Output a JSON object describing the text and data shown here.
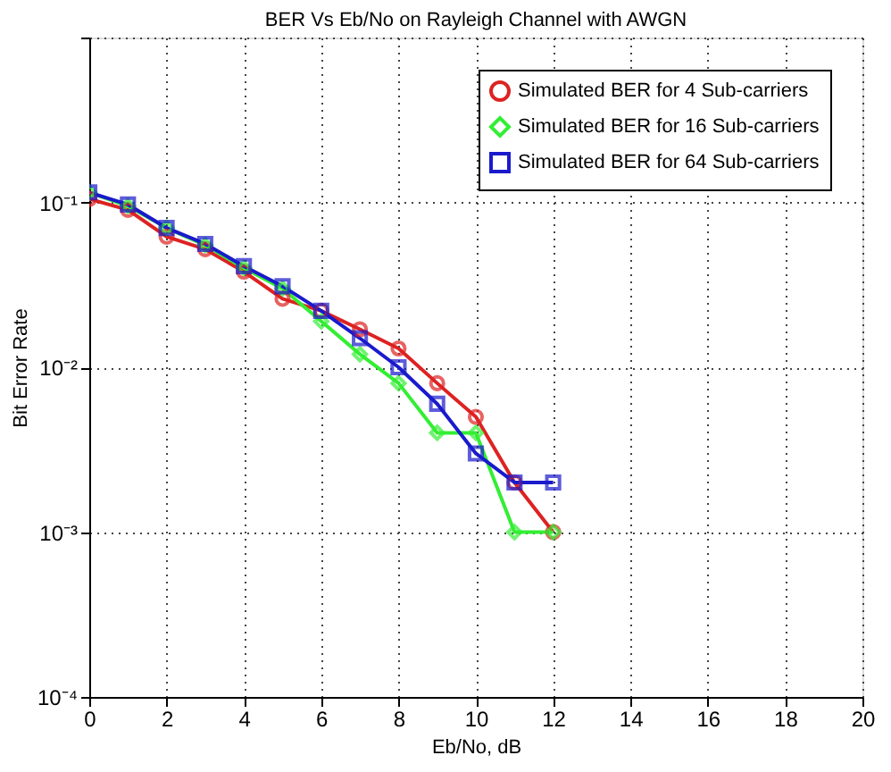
{
  "chart_data": {
    "type": "line",
    "title": "BER Vs Eb/No on Rayleigh Channel with AWGN",
    "xlabel": "Eb/No, dB",
    "ylabel": "Bit Error Rate",
    "x": [
      0,
      1,
      2,
      3,
      4,
      5,
      6,
      7,
      8,
      9,
      10,
      11,
      12
    ],
    "series": [
      {
        "name": "Simulated BER for 4 Sub-carriers",
        "color": "#dd2222",
        "marker": "circle",
        "values": [
          0.105,
          0.09,
          0.062,
          0.052,
          0.038,
          0.026,
          0.022,
          0.017,
          0.013,
          0.008,
          0.005,
          0.002,
          0.001
        ]
      },
      {
        "name": "Simulated BER for 16 Sub-carriers",
        "color": "#33ee33",
        "marker": "diamond",
        "values": [
          0.115,
          0.095,
          0.07,
          0.055,
          0.04,
          0.03,
          0.019,
          0.012,
          0.008,
          0.004,
          0.004,
          0.001,
          0.001
        ]
      },
      {
        "name": "Simulated BER for 64 Sub-carriers",
        "color": "#1a1acc",
        "marker": "square",
        "values": [
          0.115,
          0.097,
          0.07,
          0.056,
          0.041,
          0.031,
          0.022,
          0.015,
          0.01,
          0.006,
          0.003,
          0.002,
          0.002
        ]
      }
    ],
    "xlim": [
      0,
      20
    ],
    "xticks": [
      0,
      2,
      4,
      6,
      8,
      10,
      12,
      14,
      16,
      18,
      20
    ],
    "ylim": [
      0.0001,
      1
    ],
    "yticks": [
      {
        "value": 0.0001,
        "label": "10⁻⁴"
      },
      {
        "value": 0.001,
        "label": "10⁻³"
      },
      {
        "value": 0.01,
        "label": "10⁻²"
      },
      {
        "value": 0.1,
        "label": "10⁻¹"
      },
      {
        "value": 1,
        "label": null
      }
    ],
    "log": "y",
    "grid": true,
    "legend": "top right",
    "line_style": "solid"
  }
}
